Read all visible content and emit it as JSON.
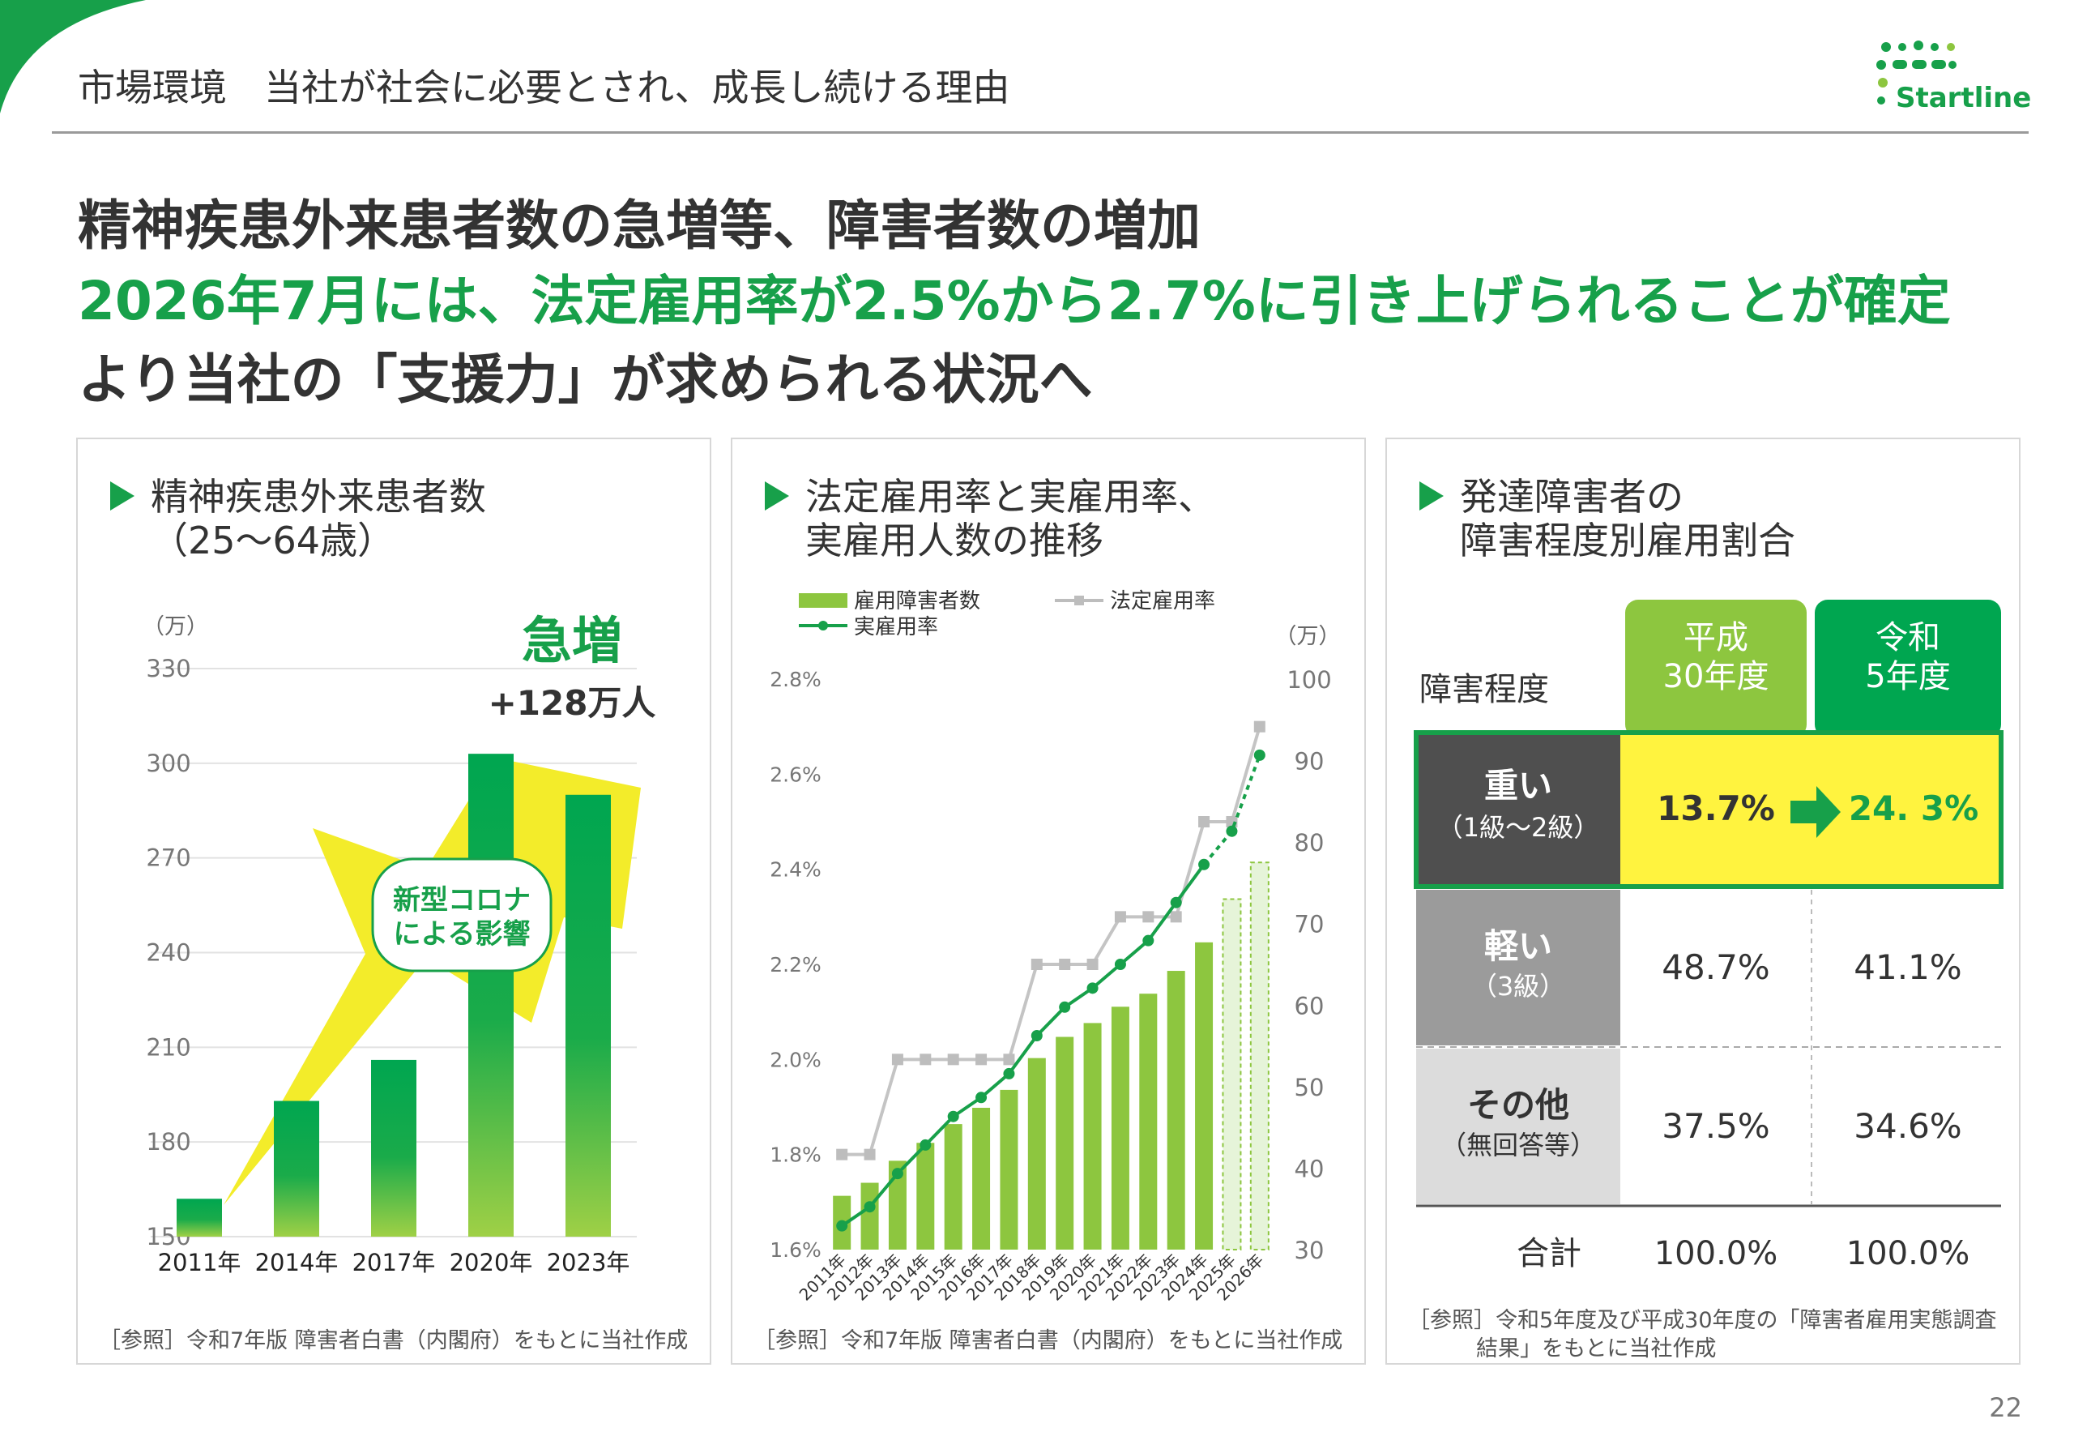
{
  "header": {
    "title": "市場環境　当社が社会に必要とされ、成長し続ける理由",
    "logo_text": "Startline"
  },
  "headline": {
    "line1": "精神疾患外来患者数の急増等、障害者数の増加",
    "line2": "2026年7月には、法定雇用率が2.5%から2.7%に引き上げられることが確定",
    "line3": "より当社の「支援力」が求められる状況へ"
  },
  "colors": {
    "brand_green": "#17a04a",
    "bar_green": "#00a650",
    "light_green": "#8dc63f",
    "highlight_yellow": "#fff33f",
    "arrow_yellow": "#f3ec2a",
    "gray_line": "#bdbdbd"
  },
  "panel1": {
    "title_line1": "精神疾患外来患者数",
    "title_line2": "（25～64歳）",
    "source": "［参照］令和7年版 障害者白書（内閣府）をもとに当社作成",
    "surge_label": "急増",
    "surge_value": "+128万人",
    "covid_line1": "新型コロナ",
    "covid_line2": "による影響"
  },
  "panel2": {
    "title_line1": "法定雇用率と実雇用率、",
    "title_line2": "実雇用人数の推移",
    "legend_bar": "雇用障害者数",
    "legend_legal": "法定雇用率",
    "legend_actual": "実雇用率",
    "source": "［参照］令和7年版 障害者白書（内閣府）をもとに当社作成"
  },
  "panel3": {
    "title_line1": "発達障害者の",
    "title_line2": "障害程度別雇用割合",
    "header_label": "障害程度",
    "col1_line1": "平成",
    "col1_line2": "30年度",
    "col2_line1": "令和",
    "col2_line2": "5年度",
    "rows": [
      {
        "label": "重い",
        "sub": "（1級～2級）",
        "v1": "13.7%",
        "v2": "24. 3%"
      },
      {
        "label": "軽い",
        "sub": "（3級）",
        "v1": "48.7%",
        "v2": "41.1%"
      },
      {
        "label": "その他",
        "sub": "（無回答等）",
        "v1": "37.5%",
        "v2": "34.6%"
      }
    ],
    "total_label": "合計",
    "total_v1": "100.0%",
    "total_v2": "100.0%",
    "source_line1": "［参照］令和5年度及び平成30年度の「障害者雇用実態調査",
    "source_line2": "結果」をもとに当社作成"
  },
  "page_number": "22",
  "chart_data": [
    {
      "type": "bar",
      "ylabel": "（万）",
      "ylim": [
        150,
        330
      ],
      "yticks": [
        150,
        180,
        210,
        240,
        270,
        300,
        330
      ],
      "categories": [
        "2011年",
        "2014年",
        "2017年",
        "2020年",
        "2023年"
      ],
      "values": [
        162,
        193,
        206,
        303,
        290
      ]
    },
    {
      "type": "bar+line",
      "categories": [
        "2011年",
        "2012年",
        "2013年",
        "2014年",
        "2015年",
        "2016年",
        "2017年",
        "2018年",
        "2019年",
        "2020年",
        "2021年",
        "2022年",
        "2023年",
        "2024年",
        "2025年",
        "2026年"
      ],
      "left_axis": {
        "ylim": [
          1.6,
          2.8
        ],
        "ticks": [
          "1.6%",
          "1.8%",
          "2.0%",
          "2.2%",
          "2.4%",
          "2.6%",
          "2.8%"
        ]
      },
      "right_axis": {
        "label": "（万）",
        "ylim": [
          30,
          100
        ],
        "ticks": [
          30,
          40,
          50,
          60,
          70,
          80,
          90,
          100
        ]
      },
      "series": [
        {
          "name": "雇用障害者数",
          "axis": "right",
          "values": [
            36.6,
            38.2,
            40.9,
            43.1,
            45.4,
            47.4,
            49.6,
            53.5,
            56.1,
            57.8,
            59.8,
            61.4,
            64.2,
            67.7,
            73.0,
            77.5
          ],
          "projected_from_index": 14
        },
        {
          "name": "法定雇用率",
          "axis": "left",
          "values": [
            1.8,
            1.8,
            2.0,
            2.0,
            2.0,
            2.0,
            2.0,
            2.2,
            2.2,
            2.2,
            2.3,
            2.3,
            2.3,
            2.5,
            2.5,
            2.7
          ]
        },
        {
          "name": "実雇用率",
          "axis": "left",
          "values": [
            1.65,
            1.69,
            1.76,
            1.82,
            1.88,
            1.92,
            1.97,
            2.05,
            2.11,
            2.15,
            2.2,
            2.25,
            2.33,
            2.41,
            2.48,
            2.64
          ],
          "projected_from_index": 13
        }
      ]
    }
  ]
}
